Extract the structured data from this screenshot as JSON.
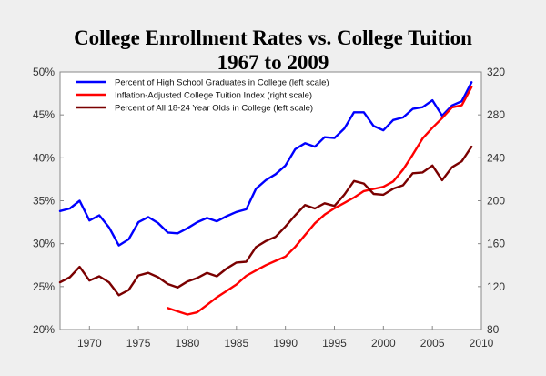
{
  "chart_data": {
    "type": "line",
    "title": "College Enrollment Rates vs. College Tuition",
    "subtitle": "1967 to 2009",
    "x_ticks": [
      1970,
      1975,
      1980,
      1985,
      1990,
      1995,
      2000,
      2005,
      2010
    ],
    "xlim": [
      1967,
      2010
    ],
    "y_left_ticks": [
      "20%",
      "25%",
      "30%",
      "35%",
      "40%",
      "45%",
      "50%"
    ],
    "y_left_lim": [
      20,
      50
    ],
    "y_right_ticks": [
      "80",
      "120",
      "160",
      "200",
      "240",
      "280",
      "320"
    ],
    "y_right_lim": [
      80,
      320
    ],
    "grid": false,
    "legend_position": "top-left",
    "series": [
      {
        "name": "Percent of High School Graduates in College (left scale)",
        "axis": "left",
        "color": "#0000ff",
        "x": [
          1967,
          1968,
          1969,
          1970,
          1971,
          1972,
          1973,
          1974,
          1975,
          1976,
          1977,
          1978,
          1979,
          1980,
          1981,
          1982,
          1983,
          1984,
          1985,
          1986,
          1987,
          1988,
          1989,
          1990,
          1991,
          1992,
          1993,
          1994,
          1995,
          1996,
          1997,
          1998,
          1999,
          2000,
          2001,
          2002,
          2003,
          2004,
          2005,
          2006,
          2007,
          2008,
          2009
        ],
        "y": [
          33.8,
          34.1,
          35.0,
          32.7,
          33.3,
          31.9,
          29.8,
          30.5,
          32.5,
          33.1,
          32.4,
          31.3,
          31.2,
          31.8,
          32.5,
          33.0,
          32.6,
          33.2,
          33.7,
          34.0,
          36.4,
          37.4,
          38.1,
          39.1,
          41.0,
          41.7,
          41.3,
          42.4,
          42.3,
          43.4,
          45.3,
          45.3,
          43.7,
          43.2,
          44.4,
          44.7,
          45.7,
          45.9,
          46.7,
          44.9,
          46.1,
          46.6,
          48.8
        ]
      },
      {
        "name": "Inflation-Adjusted College Tuition Index (right scale)",
        "axis": "right",
        "color": "#ff0000",
        "x": [
          1978,
          1979,
          1980,
          1981,
          1982,
          1983,
          1984,
          1985,
          1986,
          1987,
          1988,
          1989,
          1990,
          1991,
          1992,
          1993,
          1994,
          1995,
          1996,
          1997,
          1998,
          1999,
          2000,
          2001,
          2002,
          2003,
          2004,
          2005,
          2006,
          2007,
          2008,
          2009
        ],
        "y": [
          100,
          97,
          94,
          96,
          103,
          110,
          116,
          122,
          130,
          135,
          140,
          144,
          148,
          157,
          168,
          179,
          187,
          193,
          198,
          203,
          209,
          211,
          213,
          218,
          229,
          243,
          258,
          268,
          277,
          287,
          289,
          306
        ]
      },
      {
        "name": "Percent of All 18-24 Year Olds in College (left scale)",
        "axis": "left",
        "color": "#7a0000",
        "x": [
          1967,
          1968,
          1969,
          1970,
          1971,
          1972,
          1973,
          1974,
          1975,
          1976,
          1977,
          1978,
          1979,
          1980,
          1981,
          1982,
          1983,
          1984,
          1985,
          1986,
          1987,
          1988,
          1989,
          1990,
          1991,
          1992,
          1993,
          1994,
          1995,
          1996,
          1997,
          1998,
          1999,
          2000,
          2001,
          2002,
          2003,
          2004,
          2005,
          2006,
          2007,
          2008,
          2009
        ],
        "y": [
          25.5,
          26.1,
          27.3,
          25.7,
          26.2,
          25.5,
          24.0,
          24.6,
          26.3,
          26.6,
          26.1,
          25.3,
          24.9,
          25.6,
          26.0,
          26.6,
          26.2,
          27.1,
          27.8,
          27.9,
          29.6,
          30.3,
          30.8,
          32.0,
          33.3,
          34.5,
          34.1,
          34.7,
          34.4,
          35.7,
          37.3,
          37.0,
          35.8,
          35.7,
          36.4,
          36.8,
          38.2,
          38.3,
          39.1,
          37.4,
          38.9,
          39.6,
          41.3
        ]
      }
    ]
  }
}
